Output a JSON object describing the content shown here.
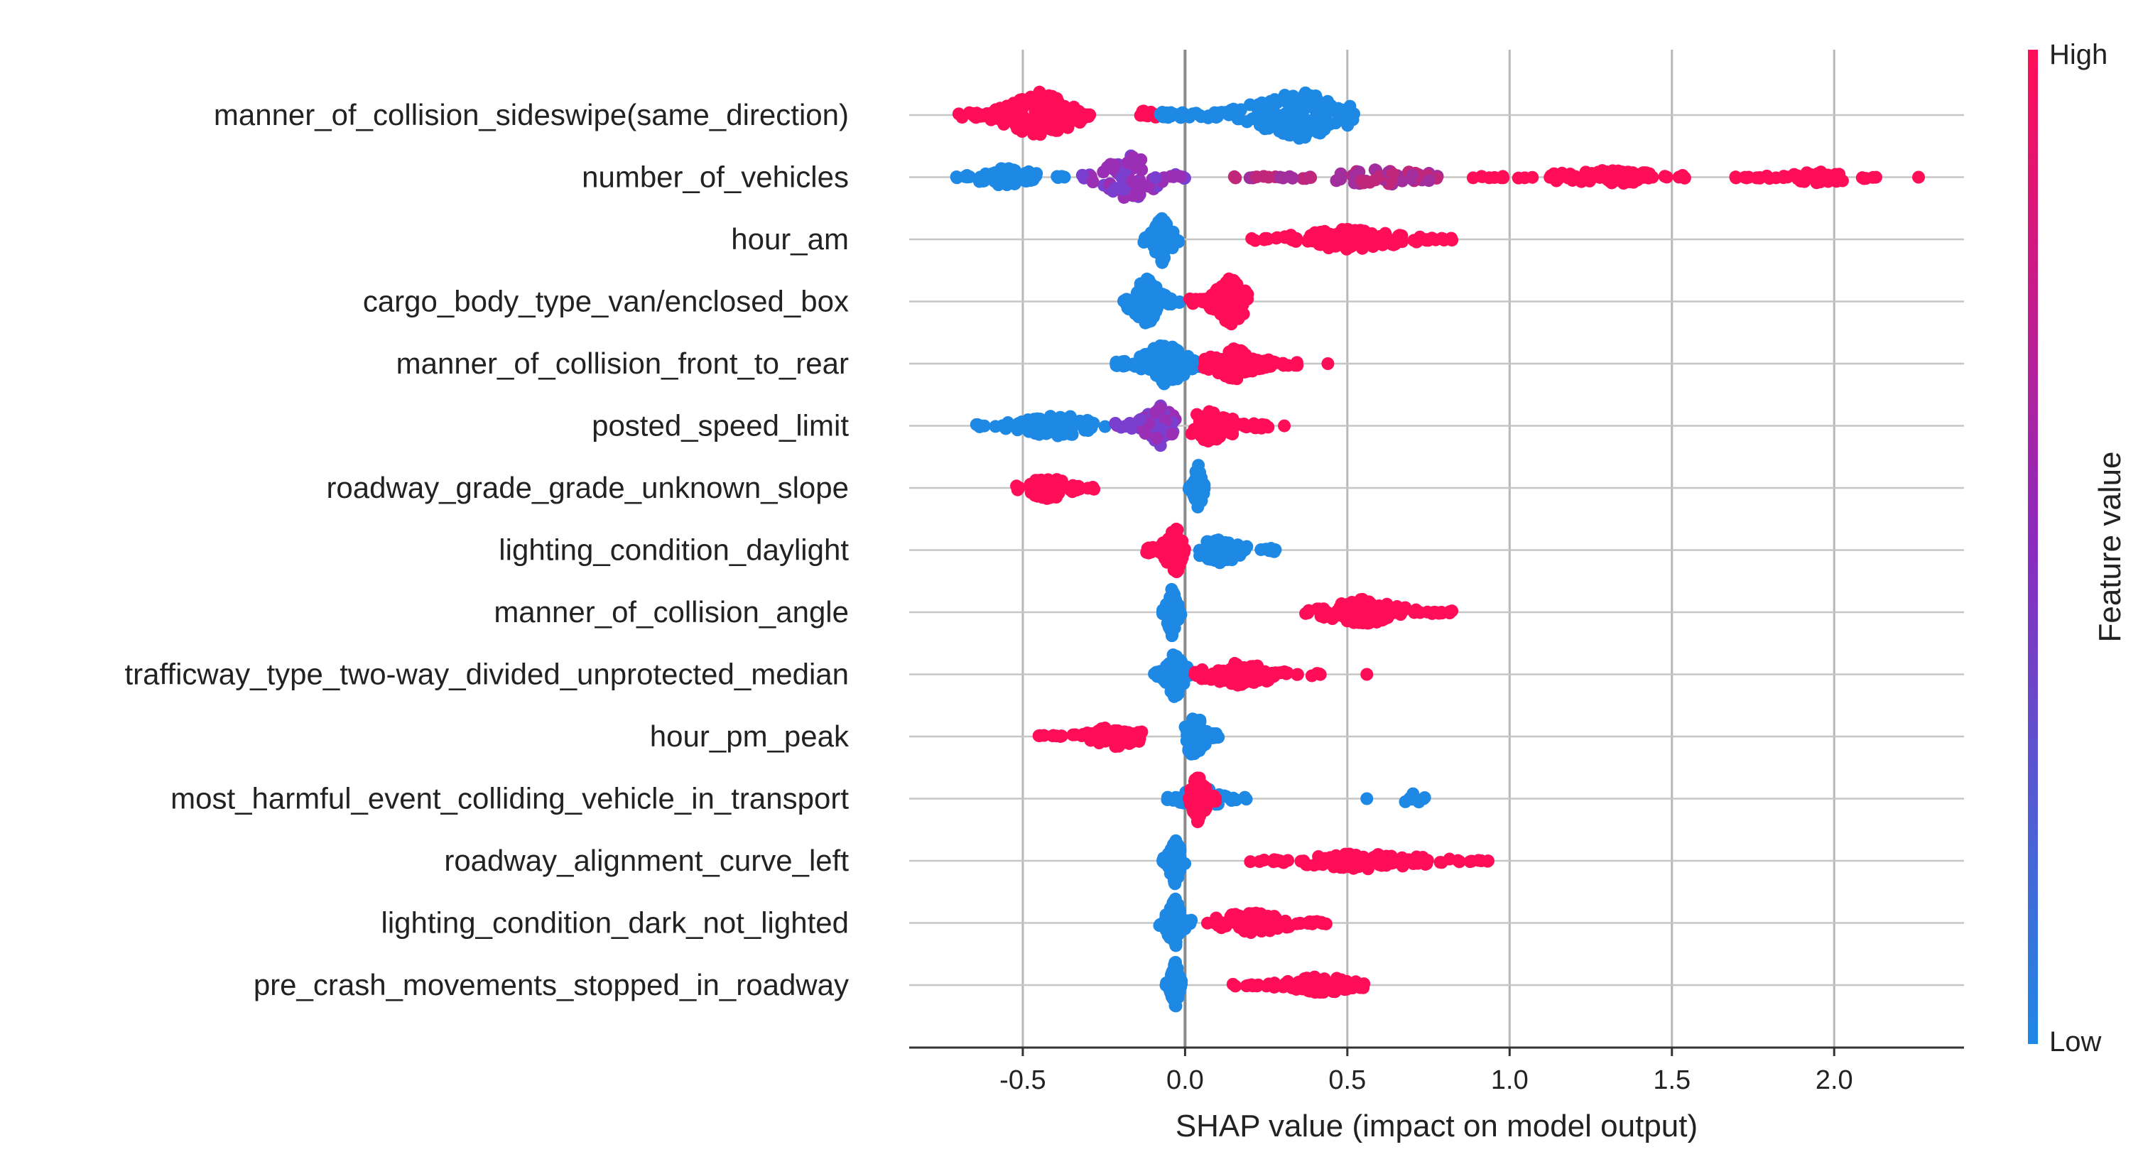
{
  "chart_data": {
    "type": "scatter",
    "subtype": "shap-beeswarm",
    "xlabel": "SHAP value (impact on model output)",
    "xlim": [
      -0.85,
      2.4
    ],
    "xticks": [
      -0.5,
      0.0,
      0.5,
      1.0,
      1.5,
      2.0
    ],
    "xtick_labels": [
      "-0.5",
      "0.0",
      "0.5",
      "1.0",
      "1.5",
      "2.0"
    ],
    "grid": true,
    "colorbar": {
      "label": "Feature value",
      "high_label": "High",
      "low_label": "Low",
      "colors": {
        "high": "#ff0d57",
        "mid": "#8a2bbf",
        "low": "#1e88e5"
      }
    },
    "features": [
      {
        "name": "manner_of_collision_sideswipe(same_direction)",
        "points": [
          {
            "range": [
              -0.7,
              -0.29
            ],
            "center": -0.45,
            "spread": 1.0,
            "count": 150,
            "value": "high"
          },
          {
            "range": [
              -0.2,
              -0.06
            ],
            "center": -0.12,
            "spread": 0.2,
            "count": 10,
            "value": "high"
          },
          {
            "range": [
              -0.08,
              0.52
            ],
            "center": 0.35,
            "spread": 1.0,
            "count": 170,
            "value": "low"
          }
        ]
      },
      {
        "name": "number_of_vehicles",
        "points": [
          {
            "range": [
              -0.72,
              -0.37
            ],
            "center": -0.55,
            "spread": 0.4,
            "count": 70,
            "value": "low"
          },
          {
            "range": [
              -0.32,
              0.0
            ],
            "center": -0.17,
            "spread": 1.0,
            "count": 80,
            "value": "mid"
          },
          {
            "range": [
              0.15,
              0.8
            ],
            "center": 0.6,
            "spread": 0.35,
            "count": 70,
            "value": "mid-high"
          },
          {
            "range": [
              0.87,
              1.57
            ],
            "center": 1.3,
            "spread": 0.3,
            "count": 90,
            "value": "high"
          },
          {
            "range": [
              1.68,
              2.15
            ],
            "center": 1.95,
            "spread": 0.25,
            "count": 60,
            "value": "high"
          },
          {
            "range": [
              2.26,
              2.26
            ],
            "center": 2.26,
            "spread": 0.0,
            "count": 1,
            "value": "high"
          }
        ]
      },
      {
        "name": "hour_am",
        "points": [
          {
            "range": [
              -0.13,
              -0.02
            ],
            "center": -0.07,
            "spread": 1.0,
            "count": 90,
            "value": "low"
          },
          {
            "range": [
              0.2,
              0.83
            ],
            "center": 0.5,
            "spread": 0.45,
            "count": 140,
            "value": "high"
          }
        ]
      },
      {
        "name": "cargo_body_type_van/enclosed_box",
        "points": [
          {
            "range": [
              -0.19,
              -0.01
            ],
            "center": -0.12,
            "spread": 1.0,
            "count": 100,
            "value": "low"
          },
          {
            "range": [
              0.01,
              0.2
            ],
            "center": 0.14,
            "spread": 1.0,
            "count": 120,
            "value": "high"
          }
        ]
      },
      {
        "name": "manner_of_collision_front_to_rear",
        "points": [
          {
            "range": [
              -0.22,
              0.05
            ],
            "center": -0.06,
            "spread": 0.9,
            "count": 110,
            "value": "low"
          },
          {
            "range": [
              0.05,
              0.36
            ],
            "center": 0.15,
            "spread": 0.7,
            "count": 90,
            "value": "high"
          },
          {
            "range": [
              0.44,
              0.44
            ],
            "center": 0.44,
            "spread": 0.0,
            "count": 1,
            "value": "high"
          }
        ]
      },
      {
        "name": "posted_speed_limit",
        "points": [
          {
            "range": [
              -0.66,
              -0.22
            ],
            "center": -0.4,
            "spread": 0.5,
            "count": 80,
            "value": "low"
          },
          {
            "range": [
              -0.22,
              -0.03
            ],
            "center": -0.08,
            "spread": 0.9,
            "count": 70,
            "value": "mid"
          },
          {
            "range": [
              0.02,
              0.31
            ],
            "center": 0.08,
            "spread": 0.8,
            "count": 70,
            "value": "high"
          }
        ]
      },
      {
        "name": "roadway_grade_grade_unknown_slope",
        "points": [
          {
            "range": [
              -0.53,
              -0.27
            ],
            "center": -0.42,
            "spread": 0.5,
            "count": 70,
            "value": "high"
          },
          {
            "range": [
              0.01,
              0.06
            ],
            "center": 0.04,
            "spread": 1.0,
            "count": 70,
            "value": "low"
          }
        ]
      },
      {
        "name": "lighting_condition_daylight",
        "points": [
          {
            "range": [
              -0.12,
              0.0
            ],
            "center": -0.03,
            "spread": 1.0,
            "count": 70,
            "value": "high"
          },
          {
            "range": [
              0.04,
              0.28
            ],
            "center": 0.11,
            "spread": 0.6,
            "count": 60,
            "value": "low"
          }
        ]
      },
      {
        "name": "manner_of_collision_angle",
        "points": [
          {
            "range": [
              -0.07,
              -0.01
            ],
            "center": -0.04,
            "spread": 1.0,
            "count": 90,
            "value": "low"
          },
          {
            "range": [
              0.37,
              0.83
            ],
            "center": 0.55,
            "spread": 0.55,
            "count": 100,
            "value": "high"
          }
        ]
      },
      {
        "name": "trafficway_type_two-way_divided_unprotected_median",
        "points": [
          {
            "range": [
              -0.1,
              0.02
            ],
            "center": -0.03,
            "spread": 1.0,
            "count": 90,
            "value": "low"
          },
          {
            "range": [
              0.03,
              0.45
            ],
            "center": 0.17,
            "spread": 0.5,
            "count": 80,
            "value": "high"
          },
          {
            "range": [
              0.56,
              0.56
            ],
            "center": 0.56,
            "spread": 0.0,
            "count": 1,
            "value": "high"
          }
        ]
      },
      {
        "name": "hour_pm_peak",
        "points": [
          {
            "range": [
              -0.46,
              -0.13
            ],
            "center": -0.22,
            "spread": 0.45,
            "count": 70,
            "value": "high"
          },
          {
            "range": [
              0.0,
              0.11
            ],
            "center": 0.03,
            "spread": 1.0,
            "count": 80,
            "value": "low"
          }
        ]
      },
      {
        "name": "most_harmful_event_colliding_vehicle_in_transport",
        "points": [
          {
            "range": [
              -0.06,
              0.2
            ],
            "center": 0.05,
            "spread": 0.5,
            "count": 60,
            "value": "low"
          },
          {
            "range": [
              0.0,
              0.1
            ],
            "center": 0.04,
            "spread": 1.0,
            "count": 70,
            "value": "high"
          },
          {
            "range": [
              0.56,
              0.56
            ],
            "center": 0.56,
            "spread": 0.0,
            "count": 1,
            "value": "low"
          },
          {
            "range": [
              0.67,
              0.74
            ],
            "center": 0.7,
            "spread": 0.4,
            "count": 8,
            "value": "low"
          }
        ]
      },
      {
        "name": "roadway_alignment_curve_left",
        "points": [
          {
            "range": [
              -0.07,
              0.0
            ],
            "center": -0.03,
            "spread": 1.0,
            "count": 80,
            "value": "low"
          },
          {
            "range": [
              0.2,
              0.94
            ],
            "center": 0.55,
            "spread": 0.35,
            "count": 100,
            "value": "high"
          }
        ]
      },
      {
        "name": "lighting_condition_dark_not_lighted",
        "points": [
          {
            "range": [
              -0.08,
              0.02
            ],
            "center": -0.03,
            "spread": 1.0,
            "count": 80,
            "value": "low"
          },
          {
            "range": [
              0.06,
              0.45
            ],
            "center": 0.2,
            "spread": 0.5,
            "count": 90,
            "value": "high"
          }
        ]
      },
      {
        "name": "pre_crash_movements_stopped_in_roadway",
        "points": [
          {
            "range": [
              -0.06,
              -0.01
            ],
            "center": -0.03,
            "spread": 1.0,
            "count": 80,
            "value": "low"
          },
          {
            "range": [
              0.14,
              0.56
            ],
            "center": 0.42,
            "spread": 0.4,
            "count": 80,
            "value": "high"
          }
        ]
      }
    ]
  }
}
